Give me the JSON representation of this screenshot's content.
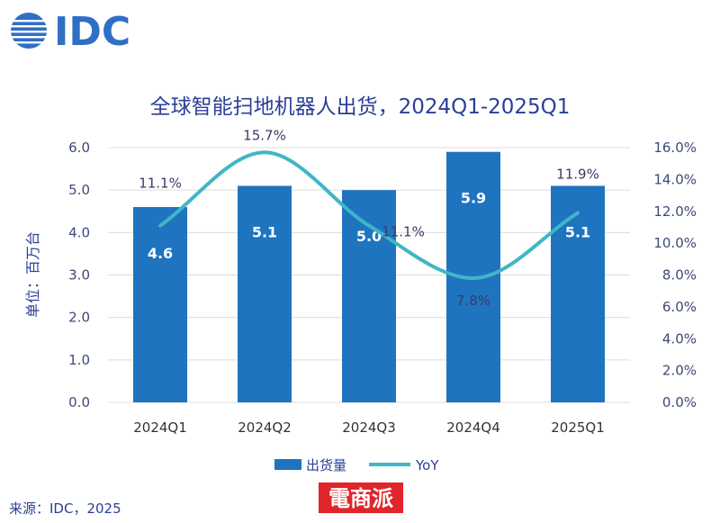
{
  "logo": {
    "text": "IDC"
  },
  "watermark": {
    "text": "電商派"
  },
  "source": "来源：IDC，2025",
  "colors": {
    "bar": "#1f74c0",
    "line": "#3fb6c6",
    "title": "#2b3f98",
    "watermark": "#e0252b"
  },
  "chart_data": {
    "type": "bar",
    "title": "全球智能扫地机器人出货，2024Q1-2025Q1",
    "ylabel": "单位：百万台",
    "categories": [
      "2024Q1",
      "2024Q2",
      "2024Q3",
      "2024Q4",
      "2025Q1"
    ],
    "series": [
      {
        "name": "出货量",
        "type": "bar",
        "axis": "left",
        "values": [
          4.6,
          5.1,
          5.0,
          5.9,
          5.1
        ],
        "labels": [
          "4.6",
          "5.1",
          "5.0",
          "5.9",
          "5.1"
        ]
      },
      {
        "name": "YoY",
        "type": "line",
        "axis": "right",
        "values": [
          11.1,
          15.7,
          11.1,
          7.8,
          11.9
        ],
        "labels": [
          "11.1%",
          "15.7%",
          "11.1%",
          "7.8%",
          "11.9%"
        ]
      }
    ],
    "ylim": [
      0,
      6
    ],
    "y_ticks": [
      "0.0",
      "1.0",
      "2.0",
      "3.0",
      "4.0",
      "5.0",
      "6.0"
    ],
    "y2lim": [
      0,
      16
    ],
    "y2_ticks": [
      "0.0%",
      "2.0%",
      "4.0%",
      "6.0%",
      "8.0%",
      "10.0%",
      "12.0%",
      "14.0%",
      "16.0%"
    ],
    "grid": true,
    "legend_position": "bottom"
  }
}
